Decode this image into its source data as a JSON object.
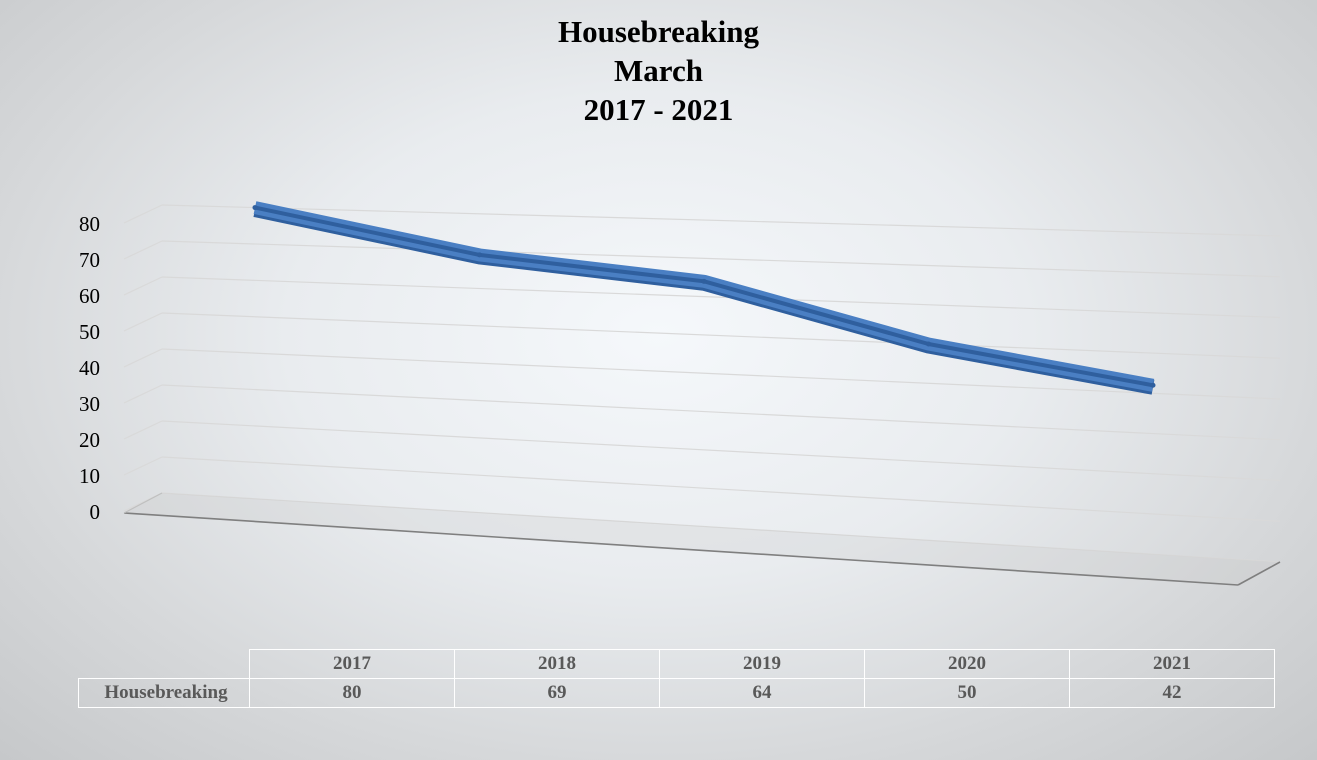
{
  "chart_data": {
    "type": "line",
    "title_lines": [
      "Housebreaking",
      "March",
      "2017 - 2021"
    ],
    "categories": [
      "2017",
      "2018",
      "2019",
      "2020",
      "2021"
    ],
    "series": [
      {
        "name": "Housebreaking",
        "values": [
          80,
          69,
          64,
          50,
          42
        ]
      }
    ],
    "ylim": [
      0,
      80
    ],
    "yticks": [
      "0",
      "10",
      "20",
      "30",
      "40",
      "50",
      "60",
      "70",
      "80"
    ],
    "grid": true,
    "legend": "data table below chart",
    "colors": {
      "line": "#4a7fc3",
      "line_dark": "#2f5f9e",
      "grid": "#d9d9d9",
      "floor": "#7f7f7f"
    }
  }
}
